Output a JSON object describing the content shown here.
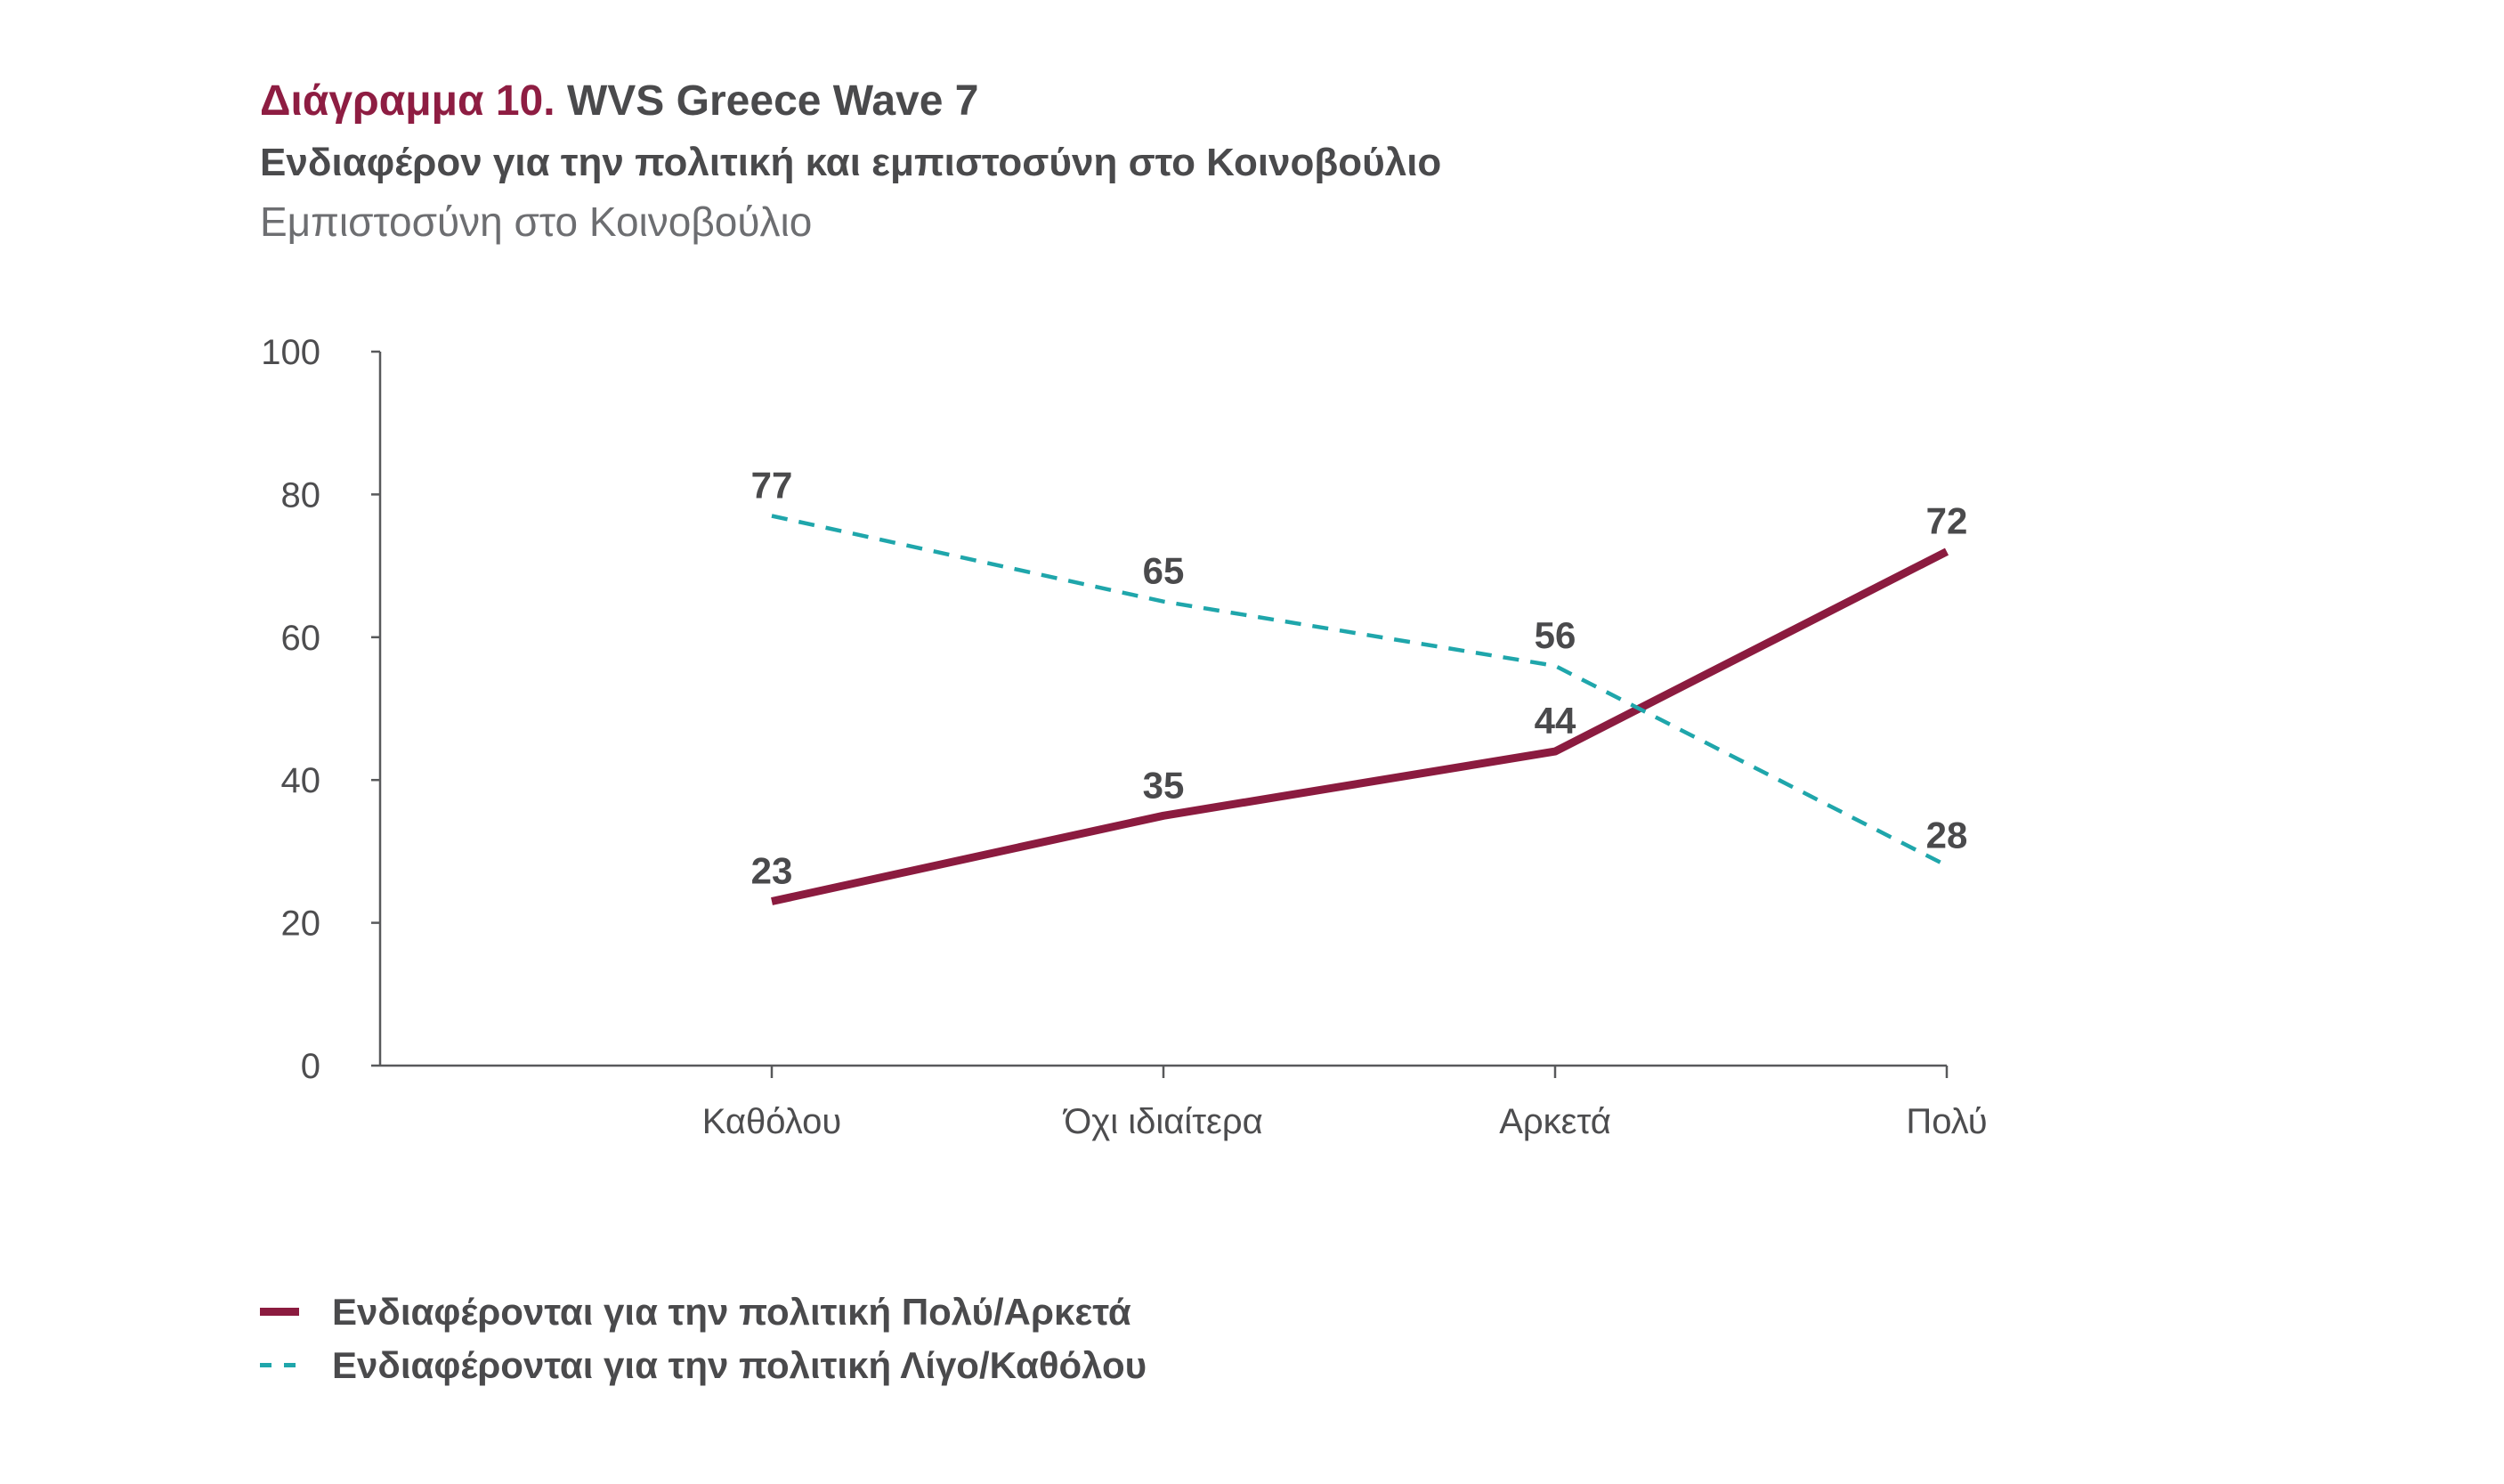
{
  "colors": {
    "accent": "#8E1D42",
    "text": "#4A4A4C",
    "muted": "#6D6E71",
    "axis": "#58595B"
  },
  "chart_data": {
    "type": "line",
    "figure_label": "Διάγραμμα 10.",
    "title": "WVS Greece Wave 7",
    "subtitle": "Ενδιαφέρον για την πολιτική και εμπιστοσύνη στο Κοινοβούλιο",
    "measure": "Εμπιστοσύνη στο Κοινοβούλιο",
    "categories": [
      "Καθόλου",
      "Όχι ιδιαίτερα",
      "Αρκετά",
      "Πολύ"
    ],
    "series": [
      {
        "name": "Ενδιαφέρονται για την πολιτική Πολύ/Αρκετά",
        "values": [
          23,
          35,
          44,
          72
        ],
        "color": "#8B1B3F",
        "line_style": "solid"
      },
      {
        "name": "Ενδιαφέρονται για την πολιτική Λίγο/Καθόλου",
        "values": [
          77,
          65,
          56,
          28
        ],
        "color": "#1FA6AB",
        "line_style": "dashed"
      }
    ],
    "ylim": [
      0,
      100
    ],
    "yticks": [
      0,
      20,
      40,
      60,
      80,
      100
    ],
    "grid": false,
    "data_labels": true,
    "legend": "bottom-left"
  }
}
